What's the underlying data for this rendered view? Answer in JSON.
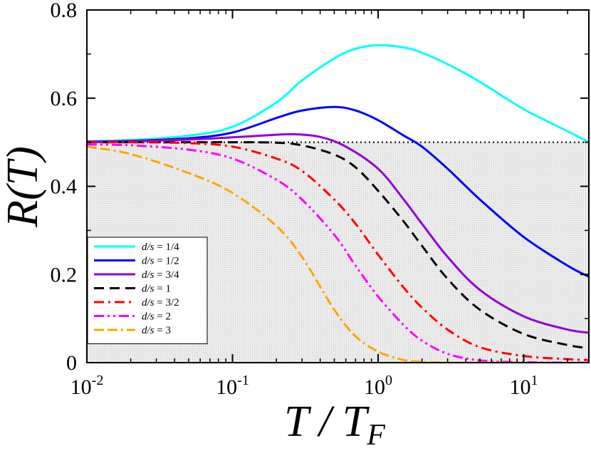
{
  "chart_data": {
    "type": "line",
    "xscale": "log",
    "xlim": [
      0.01,
      28
    ],
    "ylim": [
      0,
      0.8
    ],
    "xlabel": {
      "main": "T / T",
      "sub": "F"
    },
    "ylabel": "R(T)",
    "x_ticks": [
      {
        "value": 0.01,
        "base": "10",
        "exp": "-2"
      },
      {
        "value": 0.1,
        "base": "10",
        "exp": "-1"
      },
      {
        "value": 1,
        "base": "10",
        "exp": "0"
      },
      {
        "value": 10,
        "base": "10",
        "exp": "1"
      }
    ],
    "y_ticks": [
      {
        "value": 0,
        "label": "0"
      },
      {
        "value": 0.2,
        "label": "0.2"
      },
      {
        "value": 0.4,
        "label": "0.4"
      },
      {
        "value": 0.6,
        "label": "0.6"
      },
      {
        "value": 0.8,
        "label": "0.8"
      }
    ],
    "shaded_region": {
      "y_from": 0,
      "y_to": 0.5,
      "color": "#e8e8e8"
    },
    "reference_line": {
      "y": 0.5,
      "style": "dotted",
      "color": "#000000"
    },
    "legend_position": "lower-left",
    "series": [
      {
        "name": "d/s = 1/4",
        "var": "d/s",
        "rhs": "= 1/4",
        "color": "#00ffff",
        "dash": "solid",
        "x": [
          0.01,
          0.02,
          0.05,
          0.1,
          0.2,
          0.3,
          0.5,
          0.7,
          1.0,
          1.5,
          2,
          3,
          5,
          10,
          20,
          28
        ],
        "y": [
          0.502,
          0.505,
          0.515,
          0.535,
          0.59,
          0.64,
          0.69,
          0.712,
          0.72,
          0.715,
          0.703,
          0.677,
          0.637,
          0.575,
          0.525,
          0.5
        ]
      },
      {
        "name": "d/s = 1/2",
        "var": "d/s",
        "rhs": "= 1/2",
        "color": "#0000ff",
        "dash": "solid",
        "x": [
          0.01,
          0.02,
          0.05,
          0.1,
          0.2,
          0.3,
          0.5,
          0.7,
          1.0,
          1.5,
          2,
          3,
          5,
          10,
          20,
          28
        ],
        "y": [
          0.501,
          0.503,
          0.509,
          0.522,
          0.555,
          0.572,
          0.58,
          0.572,
          0.55,
          0.515,
          0.49,
          0.44,
          0.37,
          0.285,
          0.22,
          0.195
        ]
      },
      {
        "name": "d/s = 3/4",
        "var": "d/s",
        "rhs": "= 3/4",
        "color": "#9400d3",
        "dash": "solid",
        "x": [
          0.01,
          0.02,
          0.05,
          0.1,
          0.2,
          0.27,
          0.4,
          0.6,
          1.0,
          1.5,
          2,
          3,
          5,
          10,
          20,
          28
        ],
        "y": [
          0.5,
          0.502,
          0.506,
          0.511,
          0.517,
          0.518,
          0.512,
          0.49,
          0.44,
          0.37,
          0.315,
          0.24,
          0.165,
          0.105,
          0.075,
          0.068
        ]
      },
      {
        "name": "d/s = 1",
        "var": "d/s",
        "rhs": "= 1",
        "color": "#000000",
        "dash": "dashed",
        "x": [
          0.01,
          0.05,
          0.1,
          0.2,
          0.3,
          0.5,
          0.7,
          1.0,
          1.5,
          2,
          3,
          5,
          10,
          20,
          28
        ],
        "y": [
          0.5,
          0.5,
          0.5,
          0.499,
          0.493,
          0.472,
          0.443,
          0.39,
          0.32,
          0.265,
          0.19,
          0.12,
          0.065,
          0.04,
          0.033
        ]
      },
      {
        "name": "d/s = 3/2",
        "var": "d/s",
        "rhs": "= 3/2",
        "color": "#ff0000",
        "dash": "dash-dot",
        "x": [
          0.01,
          0.02,
          0.05,
          0.1,
          0.2,
          0.3,
          0.5,
          0.7,
          1.0,
          1.5,
          2,
          3,
          5,
          10,
          20,
          28
        ],
        "y": [
          0.5,
          0.5,
          0.498,
          0.49,
          0.463,
          0.435,
          0.37,
          0.315,
          0.245,
          0.17,
          0.125,
          0.075,
          0.035,
          0.015,
          0.008,
          0.006
        ]
      },
      {
        "name": "d/s = 2",
        "var": "d/s",
        "rhs": "= 2",
        "color": "#ff00ff",
        "dash": "dash-dot-dot",
        "x": [
          0.01,
          0.02,
          0.05,
          0.1,
          0.2,
          0.3,
          0.5,
          0.7,
          1.0,
          1.5,
          2,
          3,
          5,
          10,
          20,
          28
        ],
        "y": [
          0.495,
          0.493,
          0.483,
          0.463,
          0.415,
          0.37,
          0.29,
          0.22,
          0.15,
          0.085,
          0.05,
          0.02,
          0.005,
          0.001,
          0.0,
          0.0
        ]
      },
      {
        "name": "d/s = 3",
        "var": "d/s",
        "rhs": "= 3",
        "color": "#ffa500",
        "dash": "dash-dash-dot",
        "x": [
          0.01,
          0.02,
          0.05,
          0.1,
          0.2,
          0.3,
          0.5,
          0.7,
          1.0,
          1.5,
          2,
          3,
          5,
          10
        ],
        "y": [
          0.49,
          0.473,
          0.43,
          0.385,
          0.31,
          0.24,
          0.12,
          0.06,
          0.025,
          0.006,
          0.002,
          0.0,
          0.0,
          0.0
        ]
      }
    ]
  }
}
